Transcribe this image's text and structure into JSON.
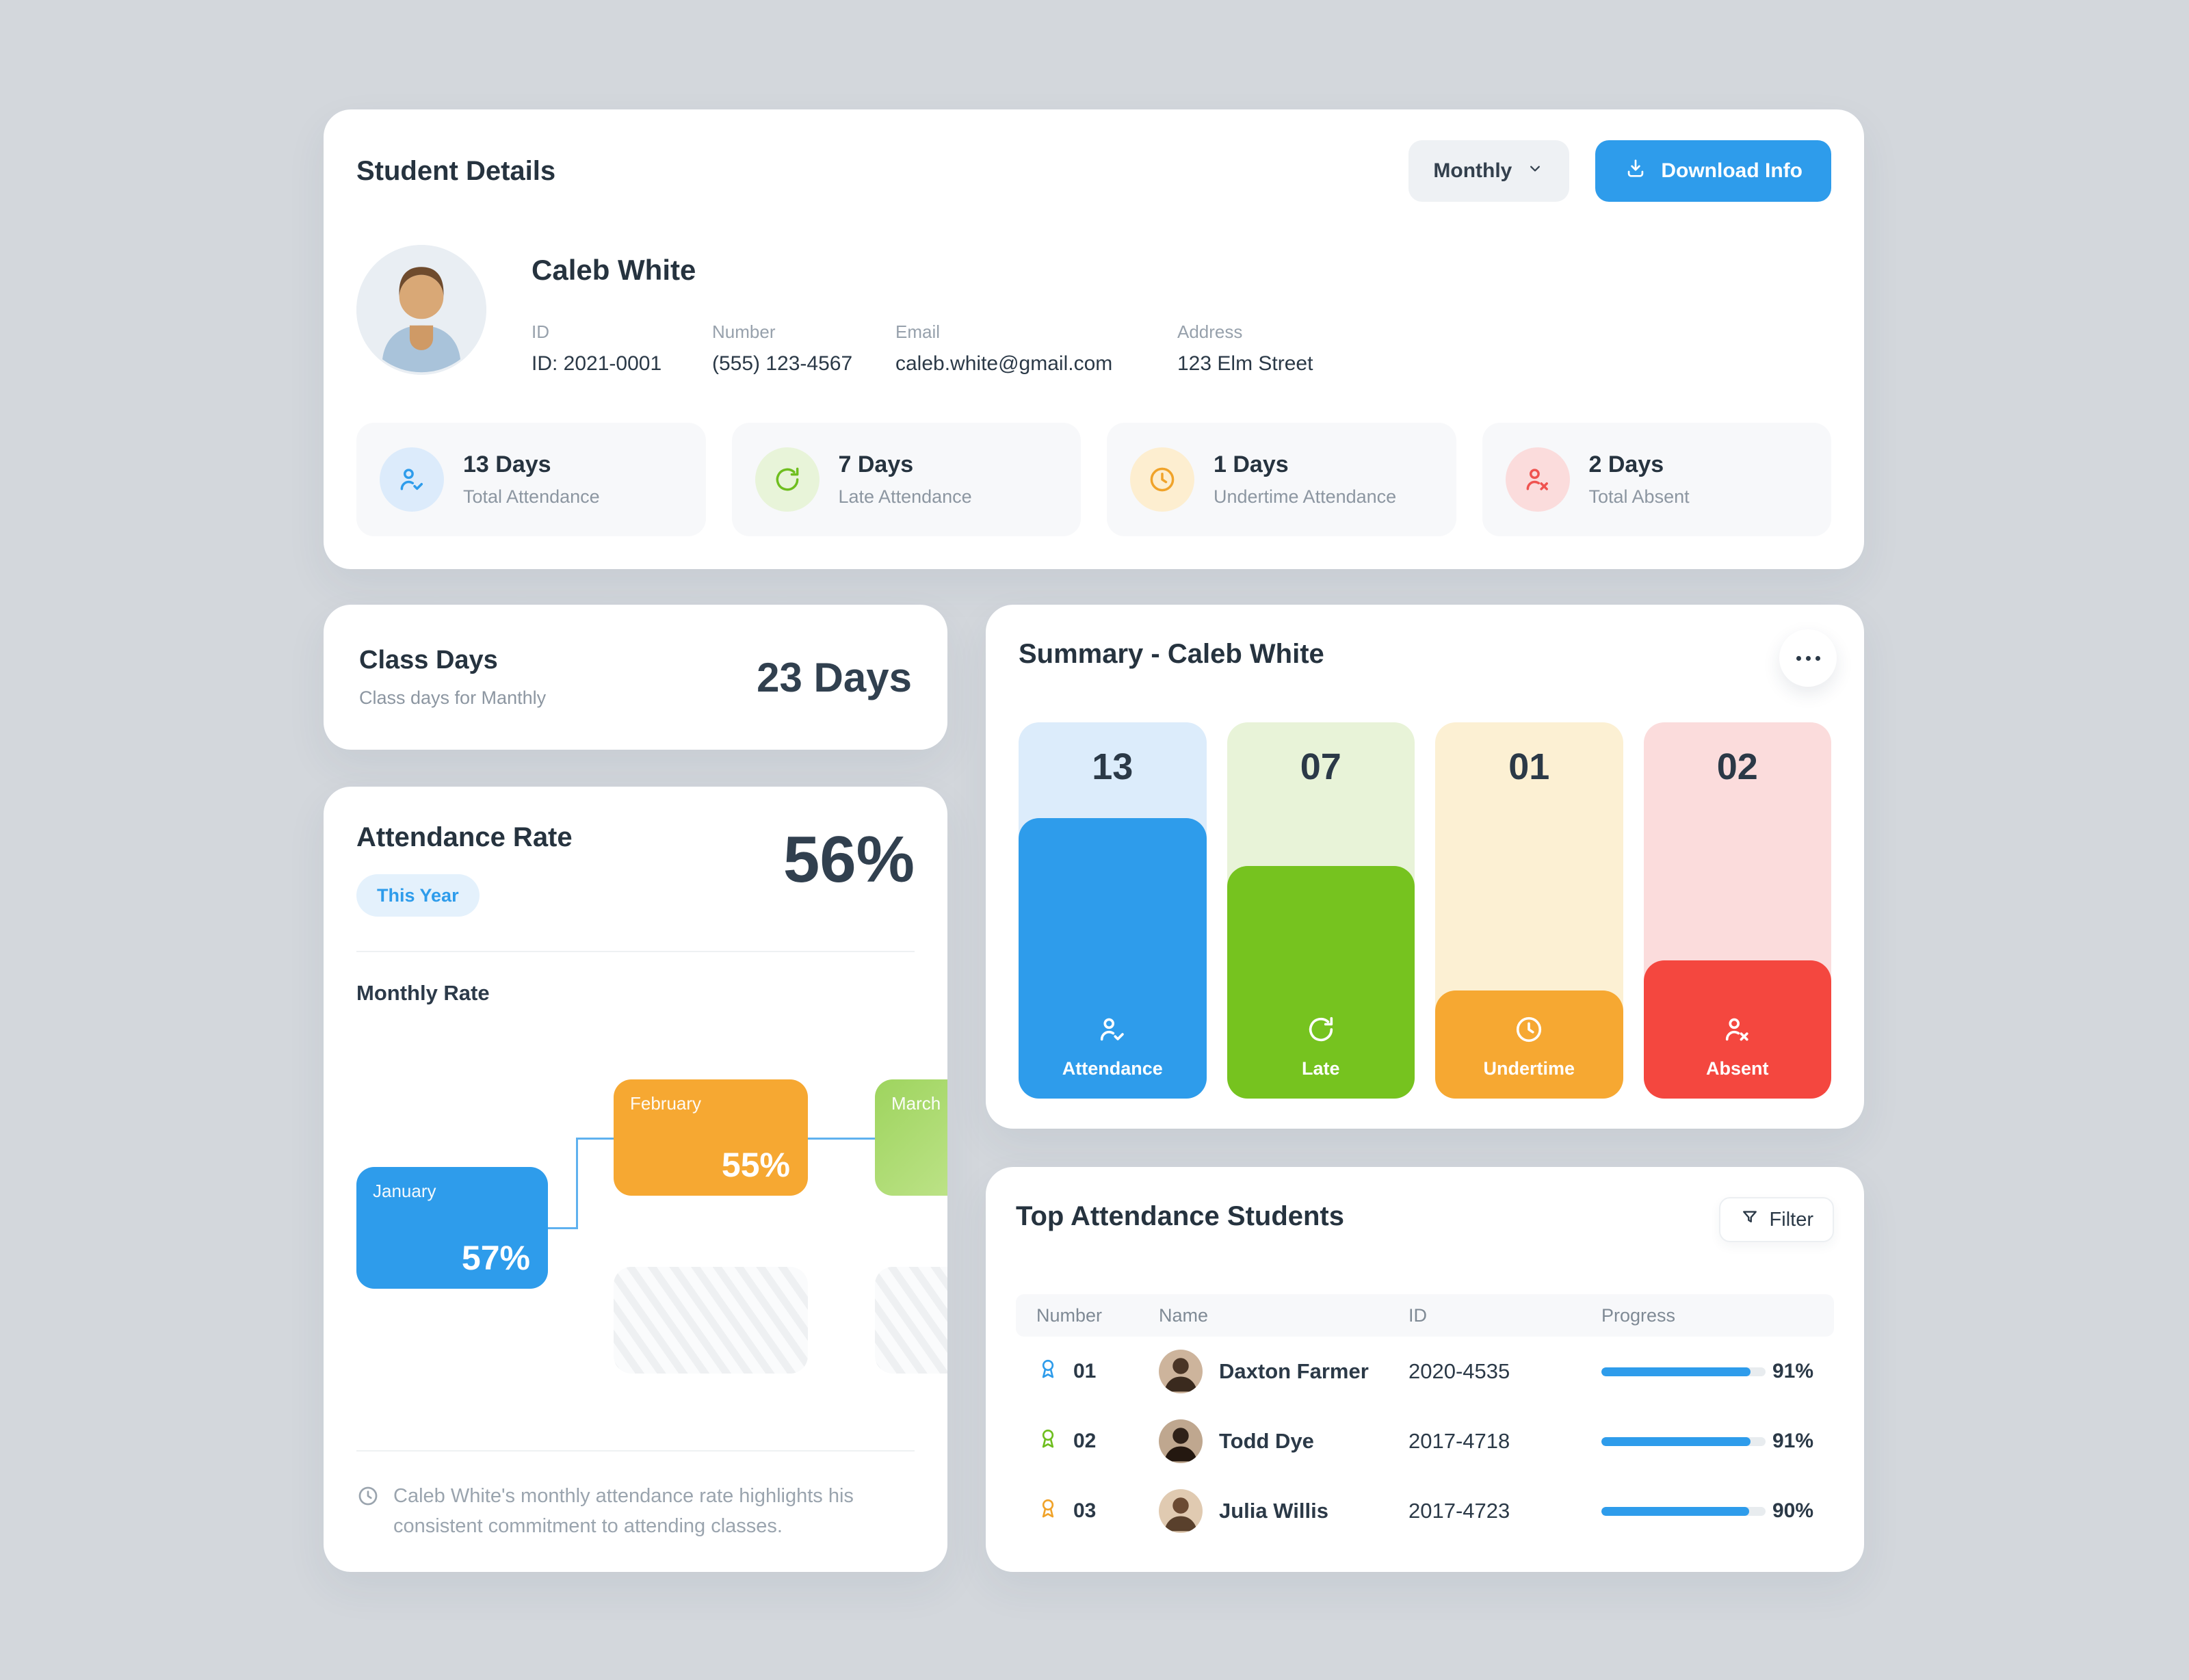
{
  "palette": {
    "blue": "#2E9CEB",
    "green": "#76C31F",
    "orange": "#F6A832",
    "red": "#F4473F",
    "blue_light": "#DCECFB",
    "green_light": "#E8F3D8",
    "orange_light": "#FCF0D3",
    "red_light": "#FBDCDC",
    "text_dark": "#2B3947",
    "text_gray": "#8C96A1",
    "page_bg": "#D3D7DC"
  },
  "student_details": {
    "title": "Student Details",
    "period_selector": "Monthly",
    "download_button": "Download Info",
    "name": "Caleb White",
    "fields": [
      {
        "label": "ID",
        "value": "ID: 2021-0001"
      },
      {
        "label": "Number",
        "value": "(555) 123-4567"
      },
      {
        "label": "Email",
        "value": "caleb.white@gmail.com"
      },
      {
        "label": "Address",
        "value": "123 Elm Street"
      }
    ],
    "stats": [
      {
        "value": "13 Days",
        "label": "Total Attendance",
        "icon": "person-check-icon"
      },
      {
        "value": "7 Days",
        "label": "Late Attendance",
        "icon": "rotate-icon"
      },
      {
        "value": "1 Days",
        "label": "Undertime Attendance",
        "icon": "clock-icon"
      },
      {
        "value": "2 Days",
        "label": "Total Absent",
        "icon": "person-x-icon"
      }
    ]
  },
  "class_days": {
    "title": "Class Days",
    "subtitle": "Class days for Manthly",
    "value": "23 Days"
  },
  "attendance_rate": {
    "title": "Attendance Rate",
    "filter_chip": "This Year",
    "value": "56%",
    "section_label": "Monthly Rate",
    "chart_data": {
      "type": "bar",
      "categories": [
        "January",
        "February",
        "March"
      ],
      "values": [
        57,
        55,
        null
      ],
      "value_labels": [
        "57%",
        "55%",
        ""
      ]
    },
    "months": [
      {
        "name": "January",
        "value": "57%"
      },
      {
        "name": "February",
        "value": "55%"
      },
      {
        "name": "March",
        "value": ""
      }
    ],
    "note": "Caleb White's monthly attendance rate highlights his consistent commitment to attending classes."
  },
  "summary": {
    "title": "Summary - Caleb White",
    "bars": [
      {
        "count": "13",
        "label": "Attendance",
        "icon": "person-check-icon"
      },
      {
        "count": "07",
        "label": "Late",
        "icon": "rotate-icon"
      },
      {
        "count": "01",
        "label": "Undertime",
        "icon": "clock-icon"
      },
      {
        "count": "02",
        "label": "Absent",
        "icon": "person-x-icon"
      }
    ]
  },
  "top_students": {
    "title": "Top Attendance Students",
    "filter_button": "Filter",
    "columns": [
      "Number",
      "Name",
      "ID",
      "Progress"
    ],
    "rows": [
      {
        "number": "01",
        "name": "Daxton Farmer",
        "id": "2020-4535",
        "progress": 91,
        "progress_label": "91%"
      },
      {
        "number": "02",
        "name": "Todd Dye",
        "id": "2017-4718",
        "progress": 91,
        "progress_label": "91%"
      },
      {
        "number": "03",
        "name": "Julia Willis",
        "id": "2017-4723",
        "progress": 90,
        "progress_label": "90%"
      }
    ]
  }
}
